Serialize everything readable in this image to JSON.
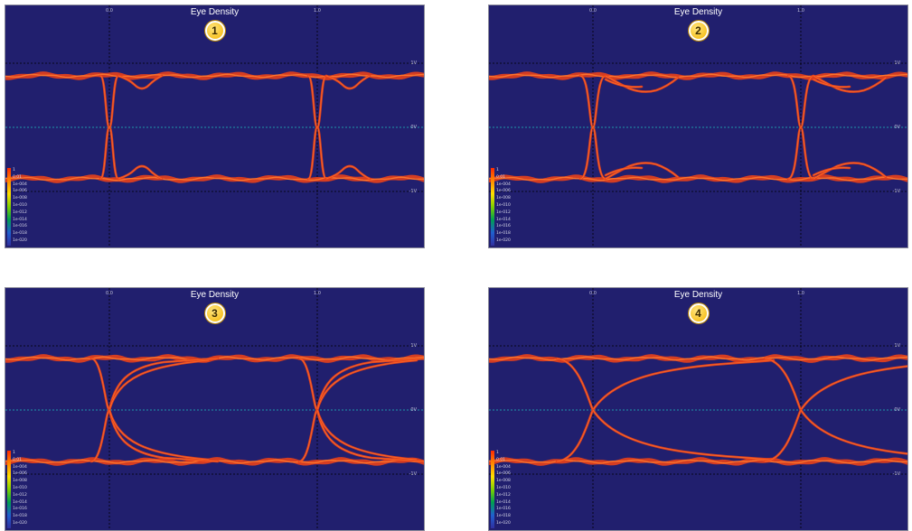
{
  "chart_data": [
    {
      "type": "eye-diagram",
      "badge": "1",
      "title": "Eye Density",
      "x_ticks": [
        "0.0",
        "1.0"
      ],
      "y_ticks": [
        "1V",
        "0V",
        "-1V"
      ],
      "colorbar": [
        "1",
        "0.01",
        "1e-004",
        "1e-006",
        "1e-008",
        "1e-010",
        "1e-012",
        "1e-014",
        "1e-016",
        "1e-018",
        "1e-020"
      ],
      "high_level": 1.0,
      "low_level": -1.0,
      "shape": "overshoot-ringing"
    },
    {
      "type": "eye-diagram",
      "badge": "2",
      "title": "Eye Density",
      "x_ticks": [
        "0.0",
        "1.0"
      ],
      "y_ticks": [
        "1V",
        "0V",
        "-1V"
      ],
      "colorbar": [
        "1",
        "0.01",
        "1e-004",
        "1e-006",
        "1e-008",
        "1e-010",
        "1e-012",
        "1e-014",
        "1e-016",
        "1e-018",
        "1e-020"
      ],
      "high_level": 1.0,
      "low_level": -1.0,
      "shape": "jittery-reflections"
    },
    {
      "type": "eye-diagram",
      "badge": "3",
      "title": "Eye Density",
      "x_ticks": [
        "0.0",
        "1.0"
      ],
      "y_ticks": [
        "1V",
        "0V",
        "-1V"
      ],
      "colorbar": [
        "1",
        "0.01",
        "1e-004",
        "1e-006",
        "1e-008",
        "1e-010",
        "1e-012",
        "1e-014",
        "1e-016",
        "1e-018",
        "1e-020"
      ],
      "high_level": 1.0,
      "low_level": -1.0,
      "shape": "slow-settling"
    },
    {
      "type": "eye-diagram",
      "badge": "4",
      "title": "Eye Density",
      "x_ticks": [
        "0.0",
        "1.0"
      ],
      "y_ticks": [
        "1V",
        "0V",
        "-1V"
      ],
      "colorbar": [
        "1",
        "0.01",
        "1e-004",
        "1e-006",
        "1e-008",
        "1e-010",
        "1e-012",
        "1e-014",
        "1e-016",
        "1e-018",
        "1e-020"
      ],
      "high_level": 1.0,
      "low_level": -1.0,
      "shape": "rc-exponential"
    }
  ],
  "colors": {
    "background": "#211f6e",
    "trace": "#e8401a",
    "trace_core": "#ff7a30",
    "grid_dotted": "#000000",
    "zero_line": "#20c0c0"
  }
}
